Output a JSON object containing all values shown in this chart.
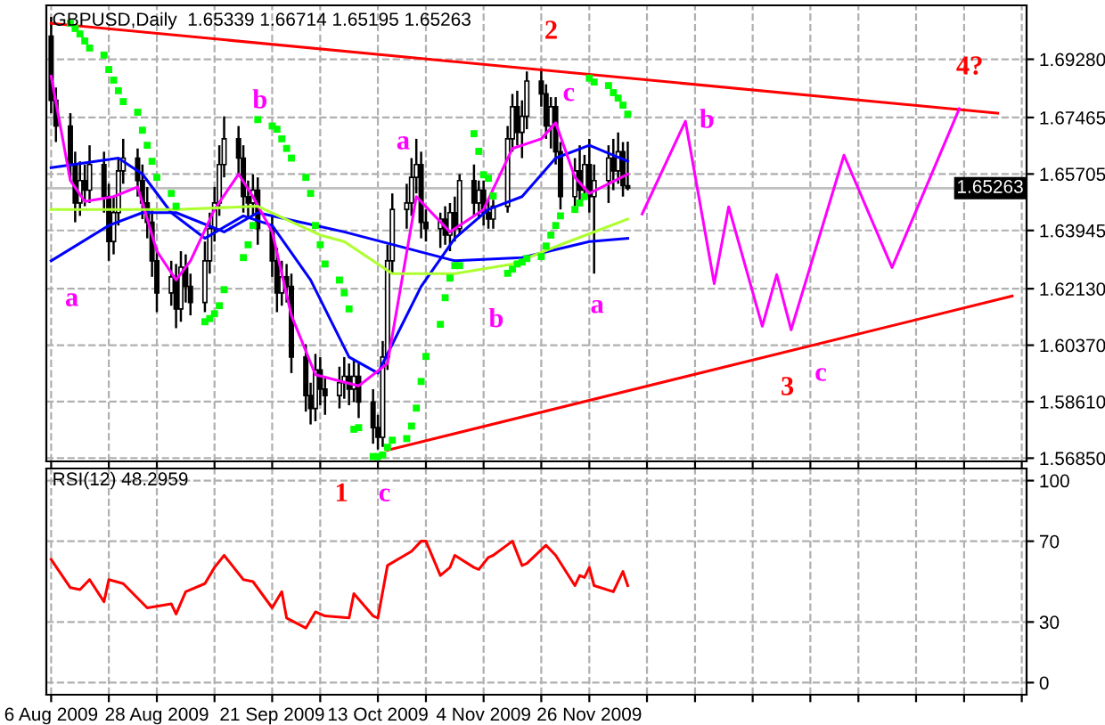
{
  "chart_data": [
    {
      "type": "candlestick",
      "title": "GBPUSD,Daily  1.65339 1.66714 1.65195 1.65263",
      "x": [
        "2009-08-06",
        "2009-08-07",
        "2009-08-10",
        "2009-08-11",
        "2009-08-12",
        "2009-08-13",
        "2009-08-14",
        "2009-08-17",
        "2009-08-18",
        "2009-08-19",
        "2009-08-20",
        "2009-08-21",
        "2009-08-24",
        "2009-08-25",
        "2009-08-26",
        "2009-08-27",
        "2009-08-28",
        "2009-08-31",
        "2009-09-01",
        "2009-09-02",
        "2009-09-03",
        "2009-09-04",
        "2009-09-07",
        "2009-09-08",
        "2009-09-09",
        "2009-09-10",
        "2009-09-11",
        "2009-09-14",
        "2009-09-15",
        "2009-09-16",
        "2009-09-17",
        "2009-09-18",
        "2009-09-21",
        "2009-09-22",
        "2009-09-23",
        "2009-09-24",
        "2009-09-25",
        "2009-09-28",
        "2009-09-29",
        "2009-09-30",
        "2009-10-01",
        "2009-10-02",
        "2009-10-05",
        "2009-10-06",
        "2009-10-07",
        "2009-10-08",
        "2009-10-09",
        "2009-10-12",
        "2009-10-13",
        "2009-10-14",
        "2009-10-15",
        "2009-10-16",
        "2009-10-19",
        "2009-10-20",
        "2009-10-21",
        "2009-10-22",
        "2009-10-23",
        "2009-10-26",
        "2009-10-27",
        "2009-10-28",
        "2009-10-29",
        "2009-10-30",
        "2009-11-02",
        "2009-11-03",
        "2009-11-04",
        "2009-11-05",
        "2009-11-06",
        "2009-11-09",
        "2009-11-10",
        "2009-11-11",
        "2009-11-12",
        "2009-11-13",
        "2009-11-16",
        "2009-11-17",
        "2009-11-18",
        "2009-11-19",
        "2009-11-20",
        "2009-11-23",
        "2009-11-24",
        "2009-11-25",
        "2009-11-26",
        "2009-11-27",
        "2009-11-30",
        "2009-12-01",
        "2009-12-02",
        "2009-12-03",
        "2009-12-04"
      ],
      "ohlc": [
        [
          1.7,
          1.706,
          1.676,
          1.68
        ],
        [
          1.68,
          1.684,
          1.667,
          1.672
        ],
        [
          1.672,
          1.676,
          1.655,
          1.66
        ],
        [
          1.66,
          1.664,
          1.642,
          1.648
        ],
        [
          1.648,
          1.661,
          1.644,
          1.655
        ],
        [
          1.655,
          1.66,
          1.647,
          1.652
        ],
        [
          1.652,
          1.666,
          1.648,
          1.66
        ],
        [
          1.66,
          1.664,
          1.645,
          1.65
        ],
        [
          1.65,
          1.654,
          1.63,
          1.636
        ],
        [
          1.636,
          1.65,
          1.632,
          1.645
        ],
        [
          1.645,
          1.662,
          1.641,
          1.658
        ],
        [
          1.658,
          1.668,
          1.654,
          1.662
        ],
        [
          1.662,
          1.665,
          1.65,
          1.655
        ],
        [
          1.655,
          1.66,
          1.643,
          1.648
        ],
        [
          1.648,
          1.653,
          1.637,
          1.642
        ],
        [
          1.642,
          1.646,
          1.625,
          1.63
        ],
        [
          1.63,
          1.634,
          1.614,
          1.62
        ],
        [
          1.62,
          1.63,
          1.616,
          1.625
        ],
        [
          1.625,
          1.629,
          1.609,
          1.615
        ],
        [
          1.615,
          1.633,
          1.611,
          1.628
        ],
        [
          1.628,
          1.632,
          1.617,
          1.622
        ],
        [
          1.622,
          1.626,
          1.613,
          1.617
        ],
        [
          1.617,
          1.636,
          1.614,
          1.63
        ],
        [
          1.63,
          1.645,
          1.626,
          1.64
        ],
        [
          1.64,
          1.653,
          1.636,
          1.648
        ],
        [
          1.648,
          1.666,
          1.644,
          1.66
        ],
        [
          1.66,
          1.675,
          1.656,
          1.668
        ],
        [
          1.668,
          1.672,
          1.657,
          1.662
        ],
        [
          1.662,
          1.666,
          1.645,
          1.65
        ],
        [
          1.65,
          1.655,
          1.643,
          1.648
        ],
        [
          1.648,
          1.657,
          1.644,
          1.652
        ],
        [
          1.652,
          1.656,
          1.635,
          1.64
        ],
        [
          1.64,
          1.644,
          1.625,
          1.63
        ],
        [
          1.63,
          1.634,
          1.614,
          1.62
        ],
        [
          1.62,
          1.63,
          1.616,
          1.625
        ],
        [
          1.625,
          1.629,
          1.617,
          1.622
        ],
        [
          1.622,
          1.626,
          1.595,
          1.6
        ],
        [
          1.6,
          1.604,
          1.583,
          1.588
        ],
        [
          1.588,
          1.592,
          1.579,
          1.584
        ],
        [
          1.584,
          1.601,
          1.58,
          1.596
        ],
        [
          1.596,
          1.6,
          1.585,
          1.59
        ],
        [
          1.59,
          1.594,
          1.582,
          1.588
        ],
        [
          1.588,
          1.597,
          1.584,
          1.592
        ],
        [
          1.592,
          1.6,
          1.587,
          1.594
        ],
        [
          1.594,
          1.598,
          1.585,
          1.59
        ],
        [
          1.59,
          1.599,
          1.586,
          1.594
        ],
        [
          1.594,
          1.598,
          1.581,
          1.586
        ],
        [
          1.586,
          1.59,
          1.573,
          1.578
        ],
        [
          1.578,
          1.582,
          1.5712,
          1.575
        ],
        [
          1.575,
          1.605,
          1.572,
          1.6
        ],
        [
          1.6,
          1.635,
          1.596,
          1.63
        ],
        [
          1.63,
          1.651,
          1.626,
          1.646
        ],
        [
          1.646,
          1.654,
          1.64,
          1.648
        ],
        [
          1.648,
          1.662,
          1.644,
          1.656
        ],
        [
          1.656,
          1.668,
          1.651,
          1.66
        ],
        [
          1.66,
          1.664,
          1.637,
          1.642
        ],
        [
          1.642,
          1.646,
          1.636,
          1.64
        ],
        [
          1.64,
          1.645,
          1.634,
          1.643
        ],
        [
          1.643,
          1.647,
          1.635,
          1.638
        ],
        [
          1.638,
          1.648,
          1.633,
          1.645
        ],
        [
          1.645,
          1.65,
          1.636,
          1.64
        ],
        [
          1.64,
          1.657,
          1.638,
          1.655
        ],
        [
          1.655,
          1.66,
          1.644,
          1.648
        ],
        [
          1.648,
          1.655,
          1.643,
          1.652
        ],
        [
          1.652,
          1.655,
          1.641,
          1.645
        ],
        [
          1.645,
          1.649,
          1.64,
          1.643
        ],
        [
          1.643,
          1.649,
          1.64,
          1.647
        ],
        [
          1.647,
          1.672,
          1.645,
          1.668
        ],
        [
          1.668,
          1.682,
          1.664,
          1.678
        ],
        [
          1.678,
          1.683,
          1.666,
          1.67
        ],
        [
          1.67,
          1.68,
          1.662,
          1.675
        ],
        [
          1.675,
          1.689,
          1.671,
          1.686
        ],
        [
          1.686,
          1.69,
          1.678,
          1.682
        ],
        [
          1.682,
          1.685,
          1.668,
          1.672
        ],
        [
          1.672,
          1.681,
          1.665,
          1.678
        ],
        [
          1.678,
          1.681,
          1.66,
          1.664
        ],
        [
          1.664,
          1.667,
          1.646,
          1.65
        ],
        [
          1.65,
          1.662,
          1.647,
          1.658
        ],
        [
          1.658,
          1.666,
          1.649,
          1.652
        ],
        [
          1.652,
          1.663,
          1.651,
          1.66
        ],
        [
          1.66,
          1.668,
          1.645,
          1.65
        ],
        [
          1.65,
          1.66,
          1.626,
          1.655
        ],
        [
          1.655,
          1.666,
          1.648,
          1.662
        ],
        [
          1.662,
          1.668,
          1.652,
          1.658
        ],
        [
          1.658,
          1.67,
          1.654,
          1.664
        ],
        [
          1.664,
          1.667,
          1.65,
          1.65339
        ],
        [
          1.65339,
          1.66714,
          1.65195,
          1.65263
        ]
      ],
      "series": [
        {
          "type": "line",
          "color": "#0000ff",
          "x": [
            "2009-08-06",
            "2009-08-20",
            "2009-08-25",
            "2009-08-31",
            "2009-09-07",
            "2009-09-15",
            "2009-09-21",
            "2009-09-29",
            "2009-10-07",
            "2009-10-13",
            "2009-10-16",
            "2009-10-22",
            "2009-10-29",
            "2009-11-05",
            "2009-11-12",
            "2009-11-19",
            "2009-11-26",
            "2009-12-04"
          ],
          "values": [
            1.659,
            1.662,
            1.657,
            1.645,
            1.637,
            1.644,
            1.641,
            1.624,
            1.6,
            1.595,
            1.604,
            1.622,
            1.637,
            1.646,
            1.65,
            1.662,
            1.666,
            1.661
          ]
        },
        {
          "type": "line",
          "color": "#0000ff",
          "x": [
            "2009-08-06",
            "2009-08-18",
            "2009-08-25",
            "2009-09-01",
            "2009-09-11",
            "2009-09-18",
            "2009-09-24",
            "2009-10-06",
            "2009-10-29",
            "2009-11-12",
            "2009-11-26",
            "2009-12-04"
          ],
          "values": [
            1.63,
            1.641,
            1.645,
            1.645,
            1.639,
            1.645,
            1.643,
            1.639,
            1.63,
            1.631,
            1.636,
            1.637
          ]
        },
        {
          "type": "line",
          "color": "#ff00ff",
          "x": [
            "2009-08-06",
            "2009-08-10",
            "2009-08-13",
            "2009-08-19",
            "2009-08-24",
            "2009-08-28",
            "2009-09-01",
            "2009-09-04",
            "2009-09-09",
            "2009-09-14",
            "2009-09-17",
            "2009-09-21",
            "2009-09-25",
            "2009-09-30",
            "2009-10-09",
            "2009-10-15",
            "2009-10-21",
            "2009-10-28",
            "2009-11-04",
            "2009-11-10",
            "2009-11-16",
            "2009-11-19",
            "2009-11-23",
            "2009-11-26",
            "2009-12-04"
          ],
          "values": [
            1.6875,
            1.655,
            1.6485,
            1.65,
            1.653,
            1.633,
            1.624,
            1.63,
            1.646,
            1.657,
            1.65,
            1.639,
            1.613,
            1.5945,
            1.591,
            1.598,
            1.65,
            1.639,
            1.646,
            1.665,
            1.668,
            1.673,
            1.656,
            1.651,
            1.657
          ]
        },
        {
          "type": "line",
          "color": "#adff2f",
          "x": [
            "2009-08-06",
            "2009-09-01",
            "2009-09-18",
            "2009-10-01",
            "2009-10-06",
            "2009-10-16",
            "2009-10-29",
            "2009-11-10",
            "2009-11-20",
            "2009-12-04"
          ],
          "values": [
            1.646,
            1.646,
            1.647,
            1.638,
            1.636,
            1.626,
            1.626,
            1.629,
            1.635,
            1.643
          ]
        },
        {
          "type": "line",
          "color": "#ff0000",
          "x": [
            "2009-08-06",
            "2010-02-19"
          ],
          "values": [
            1.704,
            1.676
          ]
        },
        {
          "type": "line",
          "color": "#ff0000",
          "x": [
            "2009-10-15",
            "2010-02-22"
          ],
          "values": [
            1.571,
            1.619
          ]
        },
        {
          "type": "line",
          "color": "#ff00ff",
          "x": [
            "2009-12-07",
            "2009-12-16",
            "2009-12-22",
            "2009-12-25",
            "2010-01-01",
            "2010-01-04",
            "2010-01-07",
            "2010-01-18",
            "2010-01-28",
            "2010-02-11"
          ],
          "values": [
            1.6446,
            1.6735,
            1.6229,
            1.6468,
            1.6096,
            1.6257,
            1.6085,
            1.6629,
            1.6279,
            1.6774
          ]
        },
        {
          "type": "scatter",
          "color": "#00ff00",
          "marker": "square",
          "x": [
            "2009-08-10",
            "2009-08-11",
            "2009-08-12",
            "2009-08-13",
            "2009-08-14",
            "2009-08-17",
            "2009-08-18",
            "2009-08-19",
            "2009-08-20",
            "2009-08-21",
            "2009-08-24",
            "2009-08-25",
            "2009-08-26",
            "2009-08-27",
            "2009-08-28",
            "2009-08-31",
            "2009-09-01",
            "2009-09-07",
            "2009-09-08",
            "2009-09-09",
            "2009-09-10",
            "2009-09-11",
            "2009-09-15",
            "2009-09-16",
            "2009-09-17",
            "2009-09-18",
            "2009-09-21",
            "2009-09-22",
            "2009-09-23",
            "2009-09-24",
            "2009-09-25",
            "2009-09-28",
            "2009-09-29",
            "2009-09-30",
            "2009-10-01",
            "2009-10-02",
            "2009-10-05",
            "2009-10-06",
            "2009-10-07",
            "2009-10-08",
            "2009-10-09",
            "2009-10-12",
            "2009-10-13",
            "2009-10-14",
            "2009-10-15",
            "2009-10-16",
            "2009-10-19",
            "2009-10-20",
            "2009-10-21",
            "2009-10-22",
            "2009-10-23",
            "2009-10-26",
            "2009-10-27",
            "2009-10-28",
            "2009-10-29",
            "2009-10-30",
            "2009-11-02",
            "2009-11-03",
            "2009-11-04",
            "2009-11-05",
            "2009-11-06",
            "2009-11-09",
            "2009-11-10",
            "2009-11-11",
            "2009-11-12",
            "2009-11-13",
            "2009-11-16",
            "2009-11-17",
            "2009-11-18",
            "2009-11-19",
            "2009-11-20",
            "2009-11-23",
            "2009-11-24",
            "2009-11-25",
            "2009-11-26",
            "2009-11-27",
            "2009-11-30",
            "2009-12-01",
            "2009-12-02",
            "2009-12-03",
            "2009-12-04"
          ],
          "values": [
            1.704,
            1.7024,
            1.7007,
            1.6985,
            1.6963,
            1.6941,
            1.6896,
            1.6863,
            1.683,
            1.6796,
            1.6763,
            1.6707,
            1.666,
            1.661,
            1.656,
            1.651,
            1.647,
            1.611,
            1.612,
            1.6135,
            1.616,
            1.621,
            1.631,
            1.635,
            1.641,
            1.674,
            1.672,
            1.671,
            1.668,
            1.665,
            1.662,
            1.656,
            1.651,
            1.641,
            1.635,
            1.629,
            1.624,
            1.62,
            1.615,
            1.5775,
            1.578,
            1.569,
            1.569,
            1.5695,
            1.5719,
            1.5741,
            1.5746,
            1.5785,
            1.5841,
            1.5924,
            1.6002,
            1.6102,
            1.6185,
            1.6246,
            1.6285,
            1.6285,
            1.6696,
            1.6641,
            1.6568,
            1.6557,
            1.6502,
            1.6261,
            1.6274,
            1.629,
            1.6296,
            1.6307,
            1.6313,
            1.6346,
            1.638,
            1.641,
            1.644,
            1.646,
            1.648,
            1.65,
            1.6869,
            1.6857,
            1.6846,
            1.6824,
            1.6807,
            1.6785,
            1.6757
          ]
        }
      ],
      "annotations": [
        "2",
        "a",
        "b",
        "a",
        "c",
        "b",
        "a",
        "b",
        "3",
        "c",
        "4?"
      ],
      "ref_lines": [
        {
          "axis": "y",
          "value": 1.65263,
          "label": "1.65263",
          "color": "#c0c0c0"
        }
      ],
      "xlim": [
        "2009-08-05",
        "2010-02-25"
      ],
      "xticks": [
        {
          "value": "2009-08-06",
          "label": null
        },
        {
          "value": "2009-08-18",
          "label": null
        },
        {
          "value": "2009-08-28",
          "label": null
        },
        {
          "value": "2009-09-09",
          "label": null
        },
        {
          "value": "2009-09-21",
          "label": null
        },
        {
          "value": "2009-10-01",
          "label": null
        },
        {
          "value": "2009-10-13",
          "label": null
        },
        {
          "value": "2009-10-23",
          "label": null
        },
        {
          "value": "2009-11-04",
          "label": null
        },
        {
          "value": "2009-11-16",
          "label": null
        },
        {
          "value": "2009-11-26",
          "label": null
        },
        {
          "value": "2009-12-08",
          "label": null
        },
        {
          "value": "2009-12-18",
          "label": null
        },
        {
          "value": "2009-12-30",
          "label": null
        },
        {
          "value": "2010-01-11",
          "label": null
        },
        {
          "value": "2010-01-21",
          "label": null
        },
        {
          "value": "2010-02-02",
          "label": null
        },
        {
          "value": "2010-02-12",
          "label": null
        },
        {
          "value": "2010-02-24",
          "label": null
        }
      ],
      "ylim": [
        1.5675,
        1.7096
      ],
      "yticks": [
        {
          "value": 1.5685,
          "label": "1.56850"
        },
        {
          "value": 1.5861,
          "label": "1.58610"
        },
        {
          "value": 1.6037,
          "label": "1.60370"
        },
        {
          "value": 1.6213,
          "label": "1.62130"
        },
        {
          "value": 1.63945,
          "label": "1.63945"
        },
        {
          "value": 1.65705,
          "label": "1.65705"
        },
        {
          "value": 1.67465,
          "label": "1.67465"
        },
        {
          "value": 1.6928,
          "label": "1.69280"
        }
      ],
      "grid": true,
      "tick_labels": "y"
    },
    {
      "type": "line",
      "title": "RSI(12) 48.2959",
      "color": "#ff0000",
      "x": [
        "2009-08-06",
        "2009-08-10",
        "2009-08-12",
        "2009-08-14",
        "2009-08-17",
        "2009-08-18",
        "2009-08-21",
        "2009-08-26",
        "2009-08-31",
        "2009-09-01",
        "2009-09-03",
        "2009-09-07",
        "2009-09-09",
        "2009-09-11",
        "2009-09-15",
        "2009-09-17",
        "2009-09-21",
        "2009-09-23",
        "2009-09-24",
        "2009-09-28",
        "2009-09-30",
        "2009-10-02",
        "2009-10-07",
        "2009-10-08",
        "2009-10-12",
        "2009-10-13",
        "2009-10-15",
        "2009-10-20",
        "2009-10-22",
        "2009-10-23",
        "2009-10-26",
        "2009-10-28",
        "2009-10-29",
        "2009-11-02",
        "2009-11-03",
        "2009-11-05",
        "2009-11-06",
        "2009-11-10",
        "2009-11-12",
        "2009-11-13",
        "2009-11-17",
        "2009-11-19",
        "2009-11-23",
        "2009-11-24",
        "2009-11-25",
        "2009-11-26",
        "2009-11-27",
        "2009-12-01",
        "2009-12-03",
        "2009-12-04"
      ],
      "values": [
        61,
        47,
        46,
        51,
        40,
        51,
        49,
        37,
        39,
        34,
        45,
        49,
        57,
        63,
        51,
        50,
        37,
        45,
        32,
        27,
        35,
        33,
        32,
        44,
        33,
        32,
        58,
        65,
        70,
        70,
        53,
        57,
        63,
        57,
        56,
        62,
        63,
        70,
        58,
        59,
        68,
        63,
        48,
        53,
        52,
        57,
        48,
        45,
        55,
        48
      ],
      "annotations": [
        "1",
        "c"
      ],
      "xlim": [
        "2009-08-05",
        "2010-02-25"
      ],
      "xticks": [
        {
          "value": "2009-08-06",
          "label": "6 Aug 2009"
        },
        {
          "value": "2009-08-18",
          "label": null
        },
        {
          "value": "2009-08-28",
          "label": "28 Aug 2009"
        },
        {
          "value": "2009-09-09",
          "label": null
        },
        {
          "value": "2009-09-21",
          "label": "21 Sep 2009"
        },
        {
          "value": "2009-10-01",
          "label": null
        },
        {
          "value": "2009-10-13",
          "label": "13 Oct 2009"
        },
        {
          "value": "2009-10-23",
          "label": null
        },
        {
          "value": "2009-11-04",
          "label": "4 Nov 2009"
        },
        {
          "value": "2009-11-16",
          "label": null
        },
        {
          "value": "2009-11-26",
          "label": "26 Nov 2009"
        },
        {
          "value": "2009-12-08",
          "label": null
        },
        {
          "value": "2009-12-18",
          "label": null
        },
        {
          "value": "2009-12-30",
          "label": null
        },
        {
          "value": "2010-01-11",
          "label": null
        },
        {
          "value": "2010-01-21",
          "label": null
        },
        {
          "value": "2010-02-02",
          "label": null
        },
        {
          "value": "2010-02-12",
          "label": null
        },
        {
          "value": "2010-02-24",
          "label": null
        }
      ],
      "ylim": [
        -6,
        106
      ],
      "yticks": [
        0,
        30,
        70,
        100
      ],
      "grid": true
    }
  ]
}
